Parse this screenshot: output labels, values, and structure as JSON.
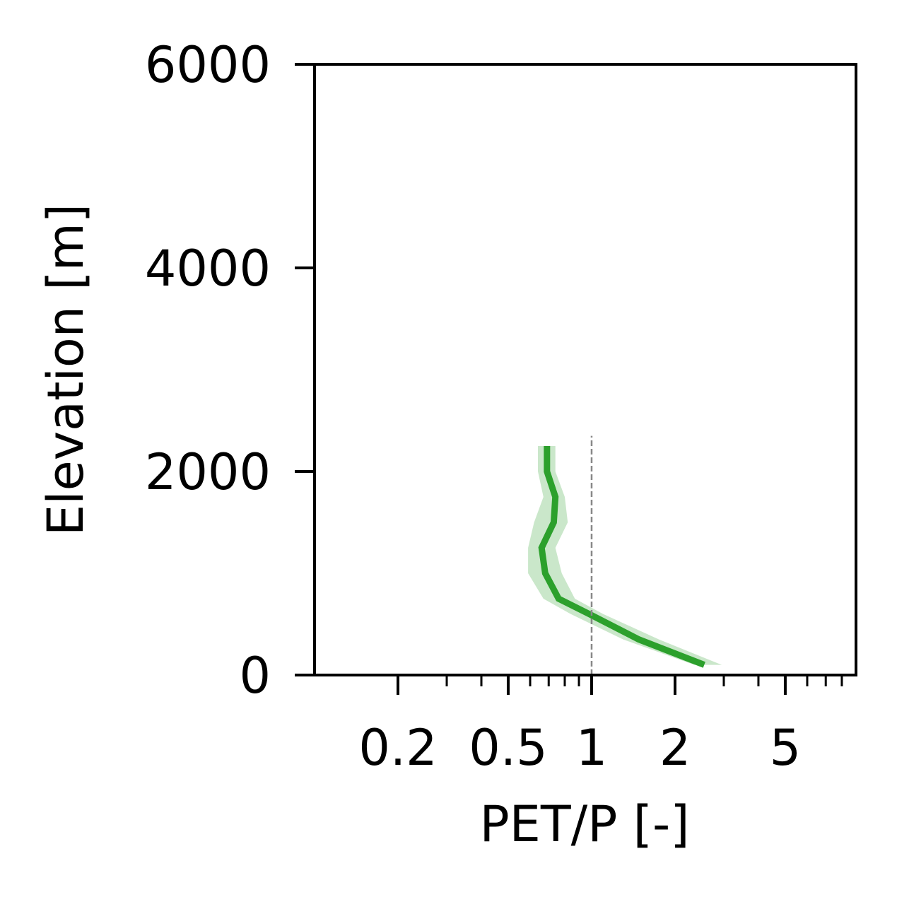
{
  "chart_data": {
    "type": "line",
    "xlabel": "PET/P [-]",
    "ylabel": "Elevation [m]",
    "xscale": "log",
    "xlim": [
      0.1,
      9.0
    ],
    "ylim": [
      0,
      6000
    ],
    "grid": false,
    "legend": "none",
    "xticks": [
      {
        "value": 0.2,
        "label": "0.2"
      },
      {
        "value": 0.5,
        "label": "0.5"
      },
      {
        "value": 1,
        "label": "1"
      },
      {
        "value": 2,
        "label": "2"
      },
      {
        "value": 5,
        "label": "5"
      }
    ],
    "yticks": [
      {
        "value": 0,
        "label": "0"
      },
      {
        "value": 2000,
        "label": "2000"
      },
      {
        "value": 4000,
        "label": "4000"
      },
      {
        "value": 6000,
        "label": "6000"
      }
    ],
    "reference_line": {
      "x": 1,
      "y_range": [
        0,
        2350
      ],
      "color": "#888888",
      "style": "dashed"
    },
    "series": [
      {
        "color": "#2ca02c",
        "band_color": "#2ca02c",
        "points": [
          {
            "y": 2250,
            "x": 0.69,
            "lo": 0.64,
            "hi": 0.74
          },
          {
            "y": 2000,
            "x": 0.69,
            "lo": 0.64,
            "hi": 0.74
          },
          {
            "y": 1750,
            "x": 0.74,
            "lo": 0.67,
            "hi": 0.8
          },
          {
            "y": 1500,
            "x": 0.73,
            "lo": 0.62,
            "hi": 0.82
          },
          {
            "y": 1250,
            "x": 0.66,
            "lo": 0.59,
            "hi": 0.74
          },
          {
            "y": 1000,
            "x": 0.68,
            "lo": 0.59,
            "hi": 0.78
          },
          {
            "y": 750,
            "x": 0.76,
            "lo": 0.67,
            "hi": 0.87
          },
          {
            "y": 600,
            "x": 0.98,
            "lo": 0.84,
            "hi": 1.1
          },
          {
            "y": 350,
            "x": 1.48,
            "lo": 1.3,
            "hi": 1.75
          },
          {
            "y": 100,
            "x": 2.55,
            "lo": 2.35,
            "hi": 2.95
          }
        ]
      }
    ]
  }
}
